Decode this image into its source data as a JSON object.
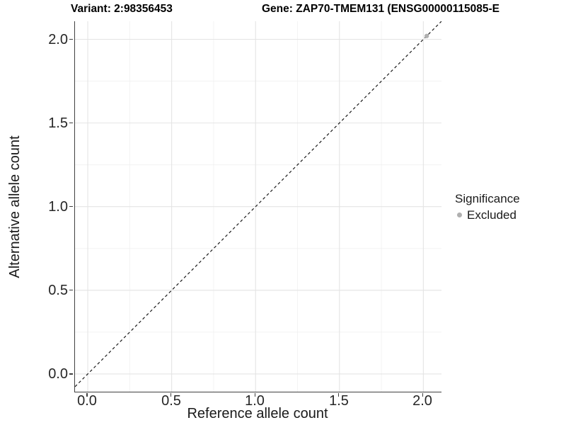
{
  "titles": {
    "variant": "Variant: 2:98356453",
    "gene": "Gene: ZAP70-TMEM131 (ENSG00000115085-E"
  },
  "axes": {
    "x_label": "Reference allele count",
    "y_label": "Alternative allele count",
    "x_tick_labels": [
      "0.0",
      "0.5",
      "1.0",
      "1.5",
      "2.0"
    ],
    "y_tick_labels": [
      "2.0",
      "1.5",
      "1.0",
      "0.5",
      "0.0"
    ]
  },
  "legend": {
    "title": "Significance",
    "items": [
      {
        "label": "Excluded",
        "color": "#b0b0b0",
        "marker": "circle-icon"
      }
    ]
  },
  "colors": {
    "background": "#ffffff",
    "axis_line": "#404040",
    "grid_major": "#e4e4e4",
    "grid_minor": "#f0f0f0",
    "tick_text": "#262626",
    "dashed_line": "#1a1a1a",
    "excluded_point": "#b0b0b0"
  },
  "chart_data": {
    "type": "scatter",
    "title": "Variant: 2:98356453   Gene: ZAP70-TMEM131 (ENSG00000115085-E",
    "xlabel": "Reference allele count",
    "ylabel": "Alternative allele count",
    "xlim": [
      -0.076,
      2.108
    ],
    "ylim": [
      -0.106,
      2.108
    ],
    "x_ticks": [
      0.0,
      0.5,
      1.0,
      1.5,
      2.0
    ],
    "y_ticks": [
      0.0,
      0.5,
      1.0,
      1.5,
      2.0
    ],
    "x_minor_ticks": [
      0.25,
      0.75,
      1.25,
      1.75
    ],
    "y_minor_ticks": [
      0.25,
      0.75,
      1.25,
      1.75
    ],
    "grid": true,
    "legend_position": "right",
    "legend_title": "Significance",
    "series": [
      {
        "name": "Excluded",
        "color": "#b0b0b0",
        "marker": "circle",
        "marker_radius": 3.2,
        "points": [
          [
            2.02,
            2.02
          ]
        ]
      }
    ],
    "identity_line": {
      "equation": "y = x",
      "style": "dashed",
      "color": "#1a1a1a",
      "dash": [
        4,
        3.5
      ]
    }
  }
}
